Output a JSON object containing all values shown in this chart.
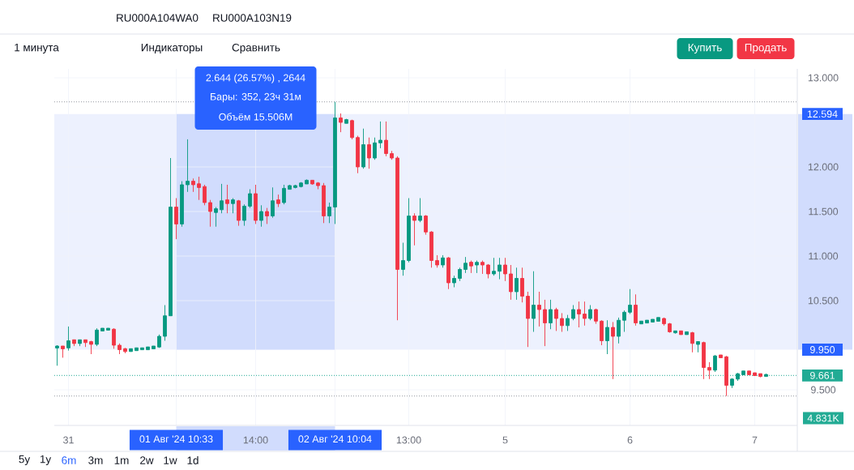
{
  "chart_data": {
    "type": "candlestick",
    "categories": [
      null,
      null,
      "31",
      null,
      null,
      null,
      null,
      null,
      null,
      null,
      null,
      null,
      null,
      null,
      null,
      null,
      null,
      null,
      null,
      null,
      null,
      "01 Авг '24 10:33",
      null,
      null,
      null,
      null,
      null,
      null,
      null,
      null,
      null,
      null,
      null,
      null,
      null,
      "14:00",
      null,
      null,
      null,
      null,
      null,
      null,
      null,
      null,
      null,
      null,
      null,
      null,
      null,
      "02 Авг '24 10:04",
      null,
      null,
      null,
      null,
      null,
      null,
      null,
      null,
      null,
      null,
      null,
      null,
      "13:00",
      null,
      null,
      null,
      null,
      null,
      null,
      null,
      null,
      null,
      null,
      null,
      null,
      null,
      null,
      null,
      null,
      "5",
      null,
      null,
      null,
      null,
      null,
      null,
      null,
      null,
      null,
      null,
      null,
      null,
      null,
      null,
      null,
      null,
      null,
      null,
      null,
      null,
      null,
      "6",
      null,
      null,
      null,
      null,
      null,
      null,
      null,
      null,
      null,
      null,
      null,
      null,
      null,
      null,
      null,
      null,
      null,
      null,
      null,
      null,
      null,
      "7",
      null,
      null
    ],
    "ohlc": [
      [
        9.98,
        10.0,
        9.77,
        9.98
      ],
      [
        9.98,
        9.99,
        9.86,
        9.97
      ],
      [
        9.97,
        10.21,
        9.94,
        10.05
      ],
      [
        10.05,
        10.06,
        9.99,
        10.03
      ],
      [
        10.03,
        10.06,
        9.99,
        10.05
      ],
      [
        10.05,
        10.06,
        9.98,
        10.04
      ],
      [
        10.04,
        10.05,
        9.9,
        10.01
      ],
      [
        10.01,
        10.19,
        9.99,
        10.17
      ],
      [
        10.17,
        10.19,
        10.16,
        10.18
      ],
      [
        10.18,
        10.19,
        10.17,
        10.18
      ],
      [
        10.18,
        10.19,
        9.96,
        10.0
      ],
      [
        10.0,
        10.02,
        9.9,
        9.95
      ],
      [
        9.95,
        9.97,
        9.91,
        9.94
      ],
      [
        9.94,
        9.96,
        9.93,
        9.95
      ],
      [
        9.95,
        9.97,
        9.94,
        9.96
      ],
      [
        9.96,
        9.97,
        9.95,
        9.96
      ],
      [
        9.96,
        9.98,
        9.95,
        9.97
      ],
      [
        9.97,
        9.99,
        9.96,
        9.98
      ],
      [
        9.98,
        10.12,
        9.97,
        10.1
      ],
      [
        10.1,
        10.45,
        10.05,
        10.33
      ],
      [
        10.33,
        12.1,
        10.33,
        11.55
      ],
      [
        11.55,
        11.65,
        11.19,
        11.36
      ],
      [
        11.36,
        11.84,
        11.33,
        11.8
      ],
      [
        11.8,
        12.31,
        11.72,
        11.84
      ],
      [
        11.84,
        11.87,
        11.72,
        11.8
      ],
      [
        11.8,
        11.89,
        11.63,
        11.78
      ],
      [
        11.78,
        11.8,
        11.57,
        11.6
      ],
      [
        11.6,
        11.63,
        11.33,
        11.5
      ],
      [
        11.5,
        11.55,
        11.33,
        11.52
      ],
      [
        11.52,
        11.81,
        11.48,
        11.62
      ],
      [
        11.62,
        11.8,
        11.48,
        11.6
      ],
      [
        11.6,
        11.65,
        11.48,
        11.62
      ],
      [
        11.62,
        11.63,
        11.34,
        11.4
      ],
      [
        11.4,
        11.58,
        11.34,
        11.56
      ],
      [
        11.56,
        11.75,
        11.54,
        11.7
      ],
      [
        11.7,
        11.8,
        11.36,
        11.4
      ],
      [
        11.4,
        11.57,
        11.33,
        11.5
      ],
      [
        11.5,
        11.54,
        11.36,
        11.45
      ],
      [
        11.45,
        11.77,
        11.43,
        11.62
      ],
      [
        11.62,
        11.69,
        11.55,
        11.6
      ],
      [
        11.6,
        11.8,
        11.58,
        11.76
      ],
      [
        11.76,
        11.8,
        11.75,
        11.78
      ],
      [
        11.78,
        11.8,
        11.76,
        11.78
      ],
      [
        11.78,
        11.83,
        11.77,
        11.82
      ],
      [
        11.82,
        11.86,
        11.81,
        11.84
      ],
      [
        11.84,
        11.85,
        11.8,
        11.82
      ],
      [
        11.82,
        11.83,
        11.75,
        11.79
      ],
      [
        11.79,
        11.82,
        11.37,
        11.45
      ],
      [
        11.45,
        11.6,
        11.37,
        11.55
      ],
      [
        11.55,
        12.73,
        11.36,
        12.55
      ],
      [
        12.55,
        12.6,
        12.39,
        12.5
      ],
      [
        12.5,
        12.54,
        12.49,
        12.52
      ],
      [
        12.52,
        12.53,
        12.31,
        12.33
      ],
      [
        12.33,
        12.35,
        11.93,
        12.0
      ],
      [
        12.0,
        12.43,
        11.98,
        12.25
      ],
      [
        12.25,
        12.33,
        11.98,
        12.1
      ],
      [
        12.1,
        12.33,
        12.08,
        12.27
      ],
      [
        12.27,
        12.51,
        12.21,
        12.3
      ],
      [
        12.3,
        12.51,
        12.12,
        12.15
      ],
      [
        12.15,
        12.18,
        12.08,
        12.1
      ],
      [
        12.1,
        12.12,
        10.28,
        10.85
      ],
      [
        10.85,
        11.15,
        10.78,
        10.95
      ],
      [
        10.95,
        11.65,
        10.93,
        11.45
      ],
      [
        11.45,
        11.48,
        11.12,
        11.4
      ],
      [
        11.4,
        11.65,
        11.38,
        11.45
      ],
      [
        11.45,
        11.46,
        11.24,
        11.27
      ],
      [
        11.27,
        11.28,
        10.87,
        10.95
      ],
      [
        10.95,
        11.01,
        10.87,
        10.9
      ],
      [
        10.9,
        11.01,
        10.87,
        10.98
      ],
      [
        10.98,
        10.99,
        10.63,
        10.7
      ],
      [
        10.7,
        10.78,
        10.65,
        10.75
      ],
      [
        10.75,
        10.87,
        10.72,
        10.85
      ],
      [
        10.85,
        10.99,
        10.81,
        10.92
      ],
      [
        10.92,
        10.95,
        10.81,
        10.9
      ],
      [
        10.9,
        10.95,
        10.81,
        10.93
      ],
      [
        10.93,
        10.95,
        10.8,
        10.9
      ],
      [
        10.9,
        10.91,
        10.75,
        10.8
      ],
      [
        10.8,
        10.98,
        10.78,
        10.83
      ],
      [
        10.83,
        10.98,
        10.74,
        10.9
      ],
      [
        10.9,
        10.98,
        10.72,
        10.8
      ],
      [
        10.8,
        10.9,
        10.51,
        10.6
      ],
      [
        10.6,
        10.87,
        10.51,
        10.75
      ],
      [
        10.75,
        10.87,
        10.48,
        10.55
      ],
      [
        10.55,
        10.6,
        9.98,
        10.3
      ],
      [
        10.3,
        10.83,
        10.15,
        10.45
      ],
      [
        10.45,
        10.6,
        10.21,
        10.4
      ],
      [
        10.4,
        10.51,
        9.99,
        10.25
      ],
      [
        10.25,
        10.51,
        10.18,
        10.4
      ],
      [
        10.4,
        10.42,
        10.16,
        10.3
      ],
      [
        10.3,
        10.36,
        10.15,
        10.22
      ],
      [
        10.22,
        10.34,
        10.16,
        10.3
      ],
      [
        10.3,
        10.45,
        10.28,
        10.4
      ],
      [
        10.4,
        10.49,
        10.2,
        10.35
      ],
      [
        10.35,
        10.49,
        10.22,
        10.3
      ],
      [
        10.3,
        10.45,
        10.28,
        10.4
      ],
      [
        10.4,
        10.41,
        10.24,
        10.27
      ],
      [
        10.27,
        10.28,
        10.0,
        10.05
      ],
      [
        10.05,
        10.28,
        9.9,
        10.2
      ],
      [
        10.2,
        10.26,
        9.62,
        10.1
      ],
      [
        10.1,
        10.31,
        10.02,
        10.28
      ],
      [
        10.28,
        10.39,
        10.15,
        10.37
      ],
      [
        10.37,
        10.63,
        10.35,
        10.45
      ],
      [
        10.45,
        10.57,
        10.22,
        10.25
      ],
      [
        10.25,
        10.27,
        10.24,
        10.26
      ],
      [
        10.26,
        10.28,
        10.25,
        10.27
      ],
      [
        10.27,
        10.29,
        10.26,
        10.28
      ],
      [
        10.28,
        10.31,
        10.27,
        10.3
      ],
      [
        10.3,
        10.31,
        10.22,
        10.24
      ],
      [
        10.24,
        10.25,
        10.14,
        10.15
      ],
      [
        10.15,
        10.16,
        10.13,
        10.15
      ],
      [
        10.15,
        10.16,
        10.12,
        10.13
      ],
      [
        10.13,
        10.15,
        10.12,
        10.14
      ],
      [
        10.14,
        10.15,
        9.92,
        10.02
      ],
      [
        10.02,
        10.04,
        9.92,
        10.03
      ],
      [
        10.03,
        10.04,
        9.62,
        9.75
      ],
      [
        9.75,
        9.81,
        9.62,
        9.72
      ],
      [
        9.72,
        9.89,
        9.7,
        9.88
      ],
      [
        9.88,
        9.89,
        9.86,
        9.87
      ],
      [
        9.87,
        9.88,
        9.43,
        9.55
      ],
      [
        9.55,
        9.63,
        9.52,
        9.62
      ],
      [
        9.62,
        9.69,
        9.6,
        9.68
      ],
      [
        9.68,
        9.71,
        9.67,
        9.7
      ],
      [
        9.7,
        9.71,
        9.67,
        9.68
      ],
      [
        9.68,
        9.69,
        9.66,
        9.67
      ],
      [
        9.67,
        9.68,
        9.64,
        9.66
      ],
      [
        9.66,
        9.68,
        9.65,
        9.661
      ]
    ],
    "colors": [
      "#089981",
      "#f23645",
      "#089981",
      "#f23645",
      "#089981",
      "#f23645",
      "#f23645",
      "#089981",
      "#089981",
      "#089981",
      "#f23645",
      "#f23645",
      "#f23645",
      "#089981",
      "#089981",
      "#089981",
      "#089981",
      "#089981",
      "#089981",
      "#089981",
      "#089981",
      "#f23645",
      "#089981",
      "#089981",
      "#f23645",
      "#f23645",
      "#f23645",
      "#f23645",
      "#089981",
      "#089981",
      "#f23645",
      "#089981",
      "#f23645",
      "#089981",
      "#089981",
      "#f23645",
      "#089981",
      "#f23645",
      "#089981",
      "#f23645",
      "#089981",
      "#089981",
      "#089981",
      "#089981",
      "#089981",
      "#f23645",
      "#f23645",
      "#f23645",
      "#089981",
      "#089981",
      "#f23645",
      "#089981",
      "#f23645",
      "#f23645",
      "#089981",
      "#f23645",
      "#089981",
      "#089981",
      "#f23645",
      "#f23645",
      "#f23645",
      "#089981",
      "#089981",
      "#f23645",
      "#089981",
      "#f23645",
      "#f23645",
      "#f23645",
      "#089981",
      "#f23645",
      "#089981",
      "#089981",
      "#089981",
      "#f23645",
      "#089981",
      "#f23645",
      "#f23645",
      "#089981",
      "#089981",
      "#f23645",
      "#f23645",
      "#089981",
      "#f23645",
      "#f23645",
      "#089981",
      "#f23645",
      "#f23645",
      "#089981",
      "#f23645",
      "#f23645",
      "#089981",
      "#089981",
      "#f23645",
      "#f23645",
      "#089981",
      "#f23645",
      "#f23645",
      "#089981",
      "#f23645",
      "#089981",
      "#089981",
      "#089981",
      "#f23645",
      "#089981",
      "#089981",
      "#089981",
      "#089981",
      "#f23645",
      "#f23645",
      "#089981",
      "#f23645",
      "#089981",
      "#f23645",
      "#089981",
      "#f23645",
      "#f23645",
      "#089981",
      "#f23645",
      "#f23645",
      "#089981",
      "#089981",
      "#089981",
      "#f23645",
      "#f23645",
      "#f23645",
      "#089981"
    ],
    "ylim": [
      9.1,
      13.1
    ],
    "yticks": [
      {
        "value": 9.5,
        "label": "9.500"
      },
      {
        "value": 10.5,
        "label": "10.500"
      },
      {
        "value": 11,
        "label": "11.000"
      },
      {
        "value": 11.5,
        "label": "11.500"
      },
      {
        "value": 12,
        "label": "12.000"
      },
      {
        "value": 13,
        "label": "13.000"
      }
    ],
    "grid": true,
    "ref_lines": [
      {
        "axis": "y",
        "value": 12.73,
        "color": "#9598a1",
        "line_style": "dotted"
      },
      {
        "axis": "y",
        "value": 9.43,
        "color": "#9598a1",
        "line_style": "dotted"
      },
      {
        "axis": "y",
        "value": 9.661,
        "label": "9.661",
        "color": "#22ab94",
        "line_style": "dotted"
      }
    ],
    "bands": [
      {
        "axis": "x",
        "from": "01 Авг '24 10:33",
        "to": "02 Авг '24 10:04",
        "color": "#d1dcfd"
      },
      {
        "axis": "y",
        "from": 9.95,
        "to": 12.594,
        "color": "#edf1fe"
      }
    ],
    "annotations": [
      "2.644 (26.57%) , 2644",
      "Бары: 352, 23ч 31м",
      "Объём 15.506M",
      "12.594",
      "9.950",
      "4.831K",
      "RU000A104WA0",
      "RU000A103N19",
      "1 минута",
      "Индикаторы",
      "Сравнить",
      "Купить",
      "Продать",
      "5y",
      "1y",
      "6m",
      "3m",
      "1m",
      "2w",
      "1w",
      "1d"
    ]
  }
}
